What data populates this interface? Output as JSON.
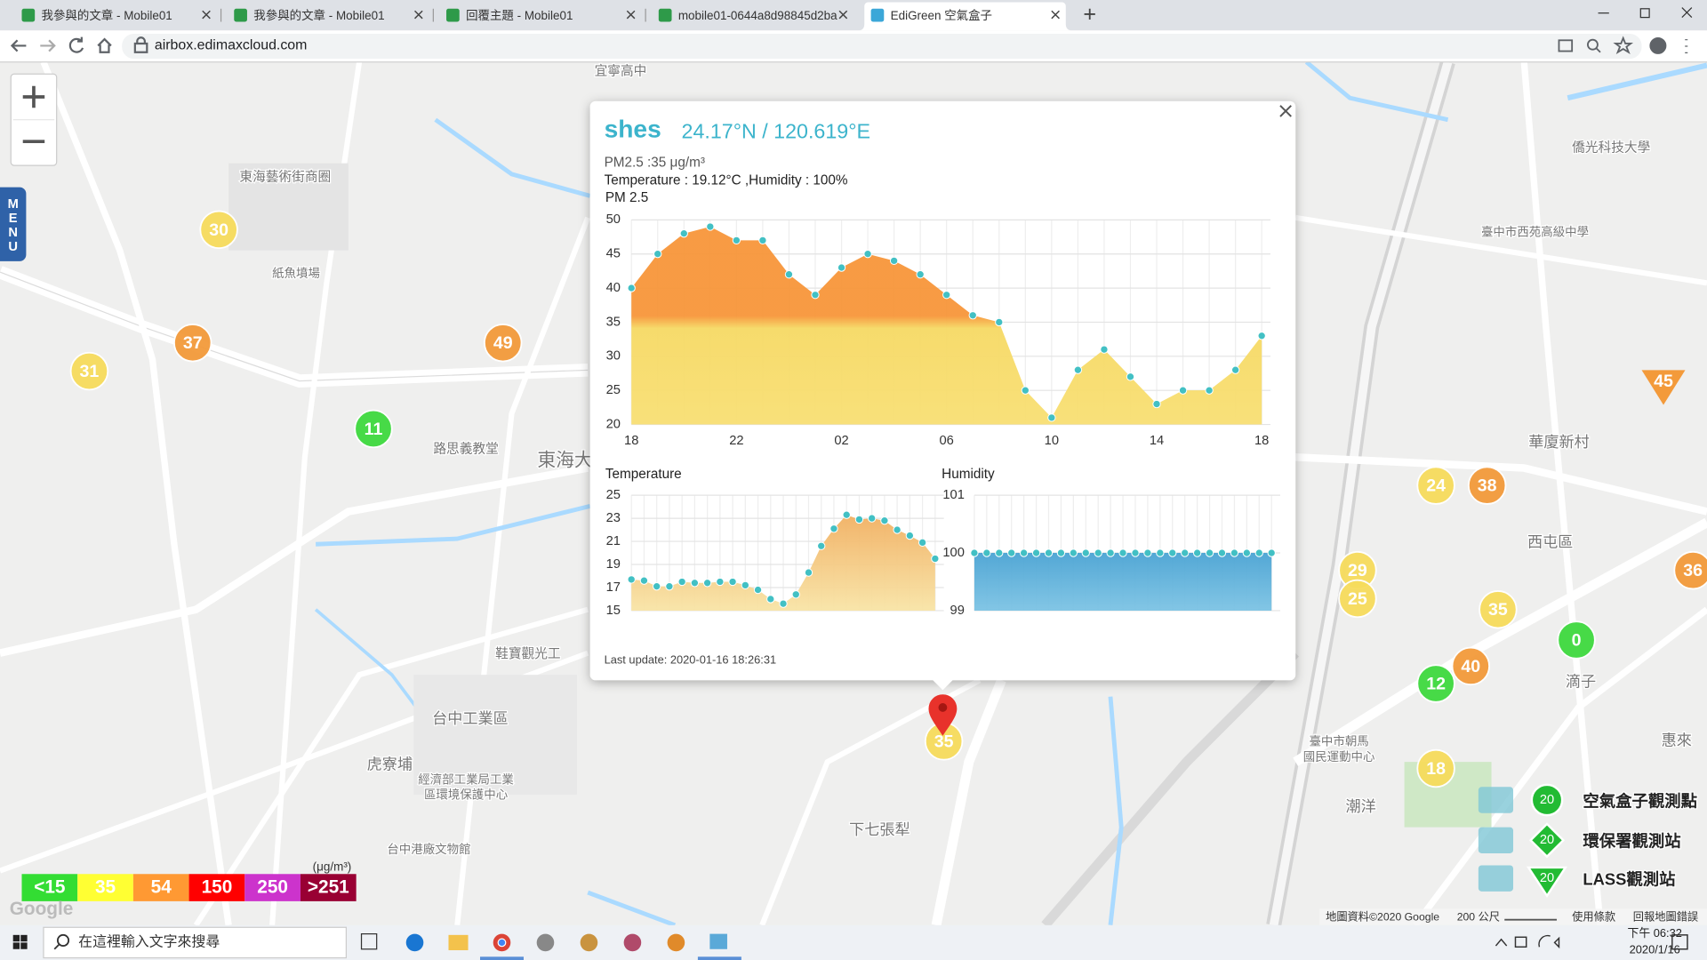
{
  "browser": {
    "tabs": [
      "我參與的文章 - Mobile01",
      "我參與的文章 - Mobile01",
      "回覆主題 - Mobile01",
      "mobile01-0644a8d98845d2ba",
      "EdiGreen 空氣盒子"
    ],
    "url": "airbox.edimaxcloud.com"
  },
  "map": {
    "menu": "MENU",
    "labels": [
      "宜寧高中",
      "東海藝術街商圈",
      "紙魚墳場",
      "路思義教堂",
      "東海大",
      "鞋寶觀光工",
      "台中工業區",
      "虎寮埔",
      "經濟部工業局工業",
      "區環境保護中心",
      "台中港廠文物館",
      "下七張犁",
      "華廈新村",
      "西屯區",
      "滴子",
      "惠來",
      "潮洋",
      "臺中市西苑高級中學",
      "僑光科技大學",
      "臺中市朝馬",
      "國民運動中心"
    ],
    "markers": [
      30,
      37,
      31,
      49,
      11,
      35,
      45,
      24,
      38,
      29,
      25,
      35,
      0,
      40,
      12,
      18,
      36
    ],
    "logo": "Google",
    "attribution": "地圖資料©2020 Google",
    "scale": "200 公尺",
    "terms": "使用條款",
    "report": "回報地圖錯誤"
  },
  "popup": {
    "name": "shes",
    "coords": "24.17°N / 120.619°E",
    "pm_line": "PM2.5 :35 μg/m³",
    "env_line": "Temperature : 19.12°C ,Humidity : 100%",
    "pm_chart": {
      "title": "PM 2.5",
      "categories": [
        "18",
        null,
        null,
        null,
        "22",
        null,
        null,
        null,
        "02",
        null,
        null,
        null,
        "06",
        null,
        null,
        null,
        "10",
        null,
        null,
        null,
        "14",
        null,
        null,
        null,
        "18"
      ],
      "values": [
        40,
        45,
        48,
        49,
        47,
        47,
        42,
        39,
        43,
        45,
        44,
        42,
        39,
        36,
        35,
        25,
        21,
        28,
        31,
        27,
        23,
        25,
        25,
        28,
        33
      ],
      "ylim": [
        20,
        50
      ],
      "yticks": [
        20,
        25,
        30,
        35,
        40,
        45,
        50
      ]
    },
    "temp_chart": {
      "title": "Temperature",
      "values": [
        17.7,
        17.6,
        17.1,
        17.1,
        17.5,
        17.4,
        17.4,
        17.5,
        17.5,
        17.2,
        16.8,
        16.0,
        15.6,
        16.4,
        18.3,
        20.6,
        22.1,
        23.3,
        22.9,
        23.0,
        22.8,
        22.0,
        21.5,
        20.9,
        19.5
      ],
      "ylim": [
        15,
        25
      ],
      "yticks": [
        15,
        17,
        19,
        21,
        23,
        25
      ]
    },
    "hum_chart": {
      "title": "Humidity",
      "values": [
        100,
        100,
        100,
        100,
        100,
        100,
        100,
        100,
        100,
        100,
        100,
        100,
        100,
        100,
        100,
        100,
        100,
        100,
        100,
        100,
        100,
        100,
        100,
        100,
        100
      ],
      "ylim": [
        99,
        101
      ],
      "yticks": [
        99,
        100,
        101
      ]
    },
    "last_update": "Last update: 2020-01-16 18:26:31"
  },
  "legend": {
    "unit": "(μg/m³)",
    "items": [
      {
        "value": 15,
        "label": "<15",
        "color": "#33dd33"
      },
      {
        "value": 35,
        "color": "#ffff33"
      },
      {
        "value": 54,
        "color": "#ff9933"
      },
      {
        "value": 150,
        "color": "#ff0000"
      },
      {
        "value": 250,
        "color": "#cc33cc"
      },
      {
        "value": 251,
        "label": ">251",
        "color": "#990033"
      }
    ]
  },
  "stations": [
    {
      "label": "空氣盒子觀測點",
      "value": 20
    },
    {
      "label": "環保署觀測站",
      "value": 20
    },
    {
      "label": "LASS觀測站",
      "value": 20
    }
  ],
  "taskbar": {
    "search": "在這裡輸入文字來搜尋",
    "time": "下午 06:32",
    "date": "2020/1/16"
  }
}
